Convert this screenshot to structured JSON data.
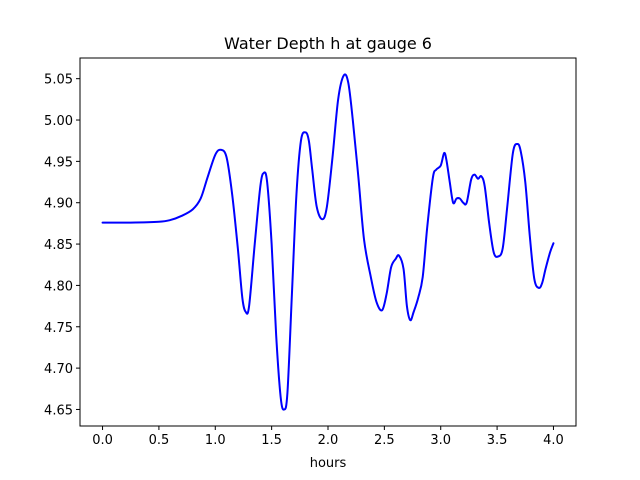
{
  "chart_data": {
    "type": "line",
    "title": "Water Depth h at gauge 6",
    "xlabel": "hours",
    "ylabel": "",
    "xlim": [
      -0.2,
      4.2
    ],
    "ylim": [
      4.63,
      5.075
    ],
    "grid": false,
    "legend": "none",
    "x_ticks": [
      0.0,
      0.5,
      1.0,
      1.5,
      2.0,
      2.5,
      3.0,
      3.5,
      4.0
    ],
    "x_tick_labels": [
      "0.0",
      "0.5",
      "1.0",
      "1.5",
      "2.0",
      "2.5",
      "3.0",
      "3.5",
      "4.0"
    ],
    "y_ticks": [
      4.65,
      4.7,
      4.75,
      4.8,
      4.85,
      4.9,
      4.95,
      5.0,
      5.05
    ],
    "y_tick_labels": [
      "4.65",
      "4.70",
      "4.75",
      "4.80",
      "4.85",
      "4.90",
      "4.95",
      "5.00",
      "5.05"
    ],
    "series": [
      {
        "color": "#0000ff",
        "x": [
          0.0,
          0.25,
          0.5,
          0.6,
          0.7,
          0.8,
          0.87,
          0.93,
          1.0,
          1.05,
          1.1,
          1.15,
          1.2,
          1.24,
          1.27,
          1.3,
          1.35,
          1.4,
          1.43,
          1.46,
          1.5,
          1.54,
          1.58,
          1.61,
          1.64,
          1.68,
          1.72,
          1.76,
          1.8,
          1.83,
          1.86,
          1.9,
          1.95,
          1.99,
          2.04,
          2.09,
          2.14,
          2.18,
          2.22,
          2.27,
          2.32,
          2.38,
          2.43,
          2.48,
          2.52,
          2.56,
          2.6,
          2.63,
          2.67,
          2.7,
          2.73,
          2.76,
          2.8,
          2.84,
          2.88,
          2.93,
          2.96,
          3.0,
          3.03,
          3.05,
          3.08,
          3.11,
          3.14,
          3.17,
          3.2,
          3.23,
          3.27,
          3.3,
          3.33,
          3.36,
          3.39,
          3.43,
          3.47,
          3.51,
          3.55,
          3.59,
          3.64,
          3.68,
          3.71,
          3.75,
          3.79,
          3.83,
          3.87,
          3.9,
          3.93,
          3.97,
          4.0
        ],
        "y": [
          4.876,
          4.876,
          4.877,
          4.879,
          4.884,
          4.892,
          4.905,
          4.93,
          4.958,
          4.964,
          4.955,
          4.91,
          4.845,
          4.785,
          4.768,
          4.775,
          4.85,
          4.92,
          4.936,
          4.925,
          4.85,
          4.74,
          4.665,
          4.65,
          4.67,
          4.79,
          4.91,
          4.975,
          4.985,
          4.975,
          4.94,
          4.895,
          4.88,
          4.895,
          4.955,
          5.025,
          5.054,
          5.045,
          5.0,
          4.93,
          4.855,
          4.81,
          4.78,
          4.77,
          4.79,
          4.822,
          4.832,
          4.836,
          4.82,
          4.775,
          4.758,
          4.768,
          4.785,
          4.81,
          4.87,
          4.93,
          4.94,
          4.945,
          4.96,
          4.952,
          4.925,
          4.9,
          4.905,
          4.905,
          4.9,
          4.9,
          4.928,
          4.934,
          4.929,
          4.932,
          4.92,
          4.875,
          4.84,
          4.835,
          4.845,
          4.895,
          4.96,
          4.971,
          4.962,
          4.925,
          4.86,
          4.808,
          4.797,
          4.803,
          4.82,
          4.84,
          4.851
        ]
      }
    ]
  }
}
